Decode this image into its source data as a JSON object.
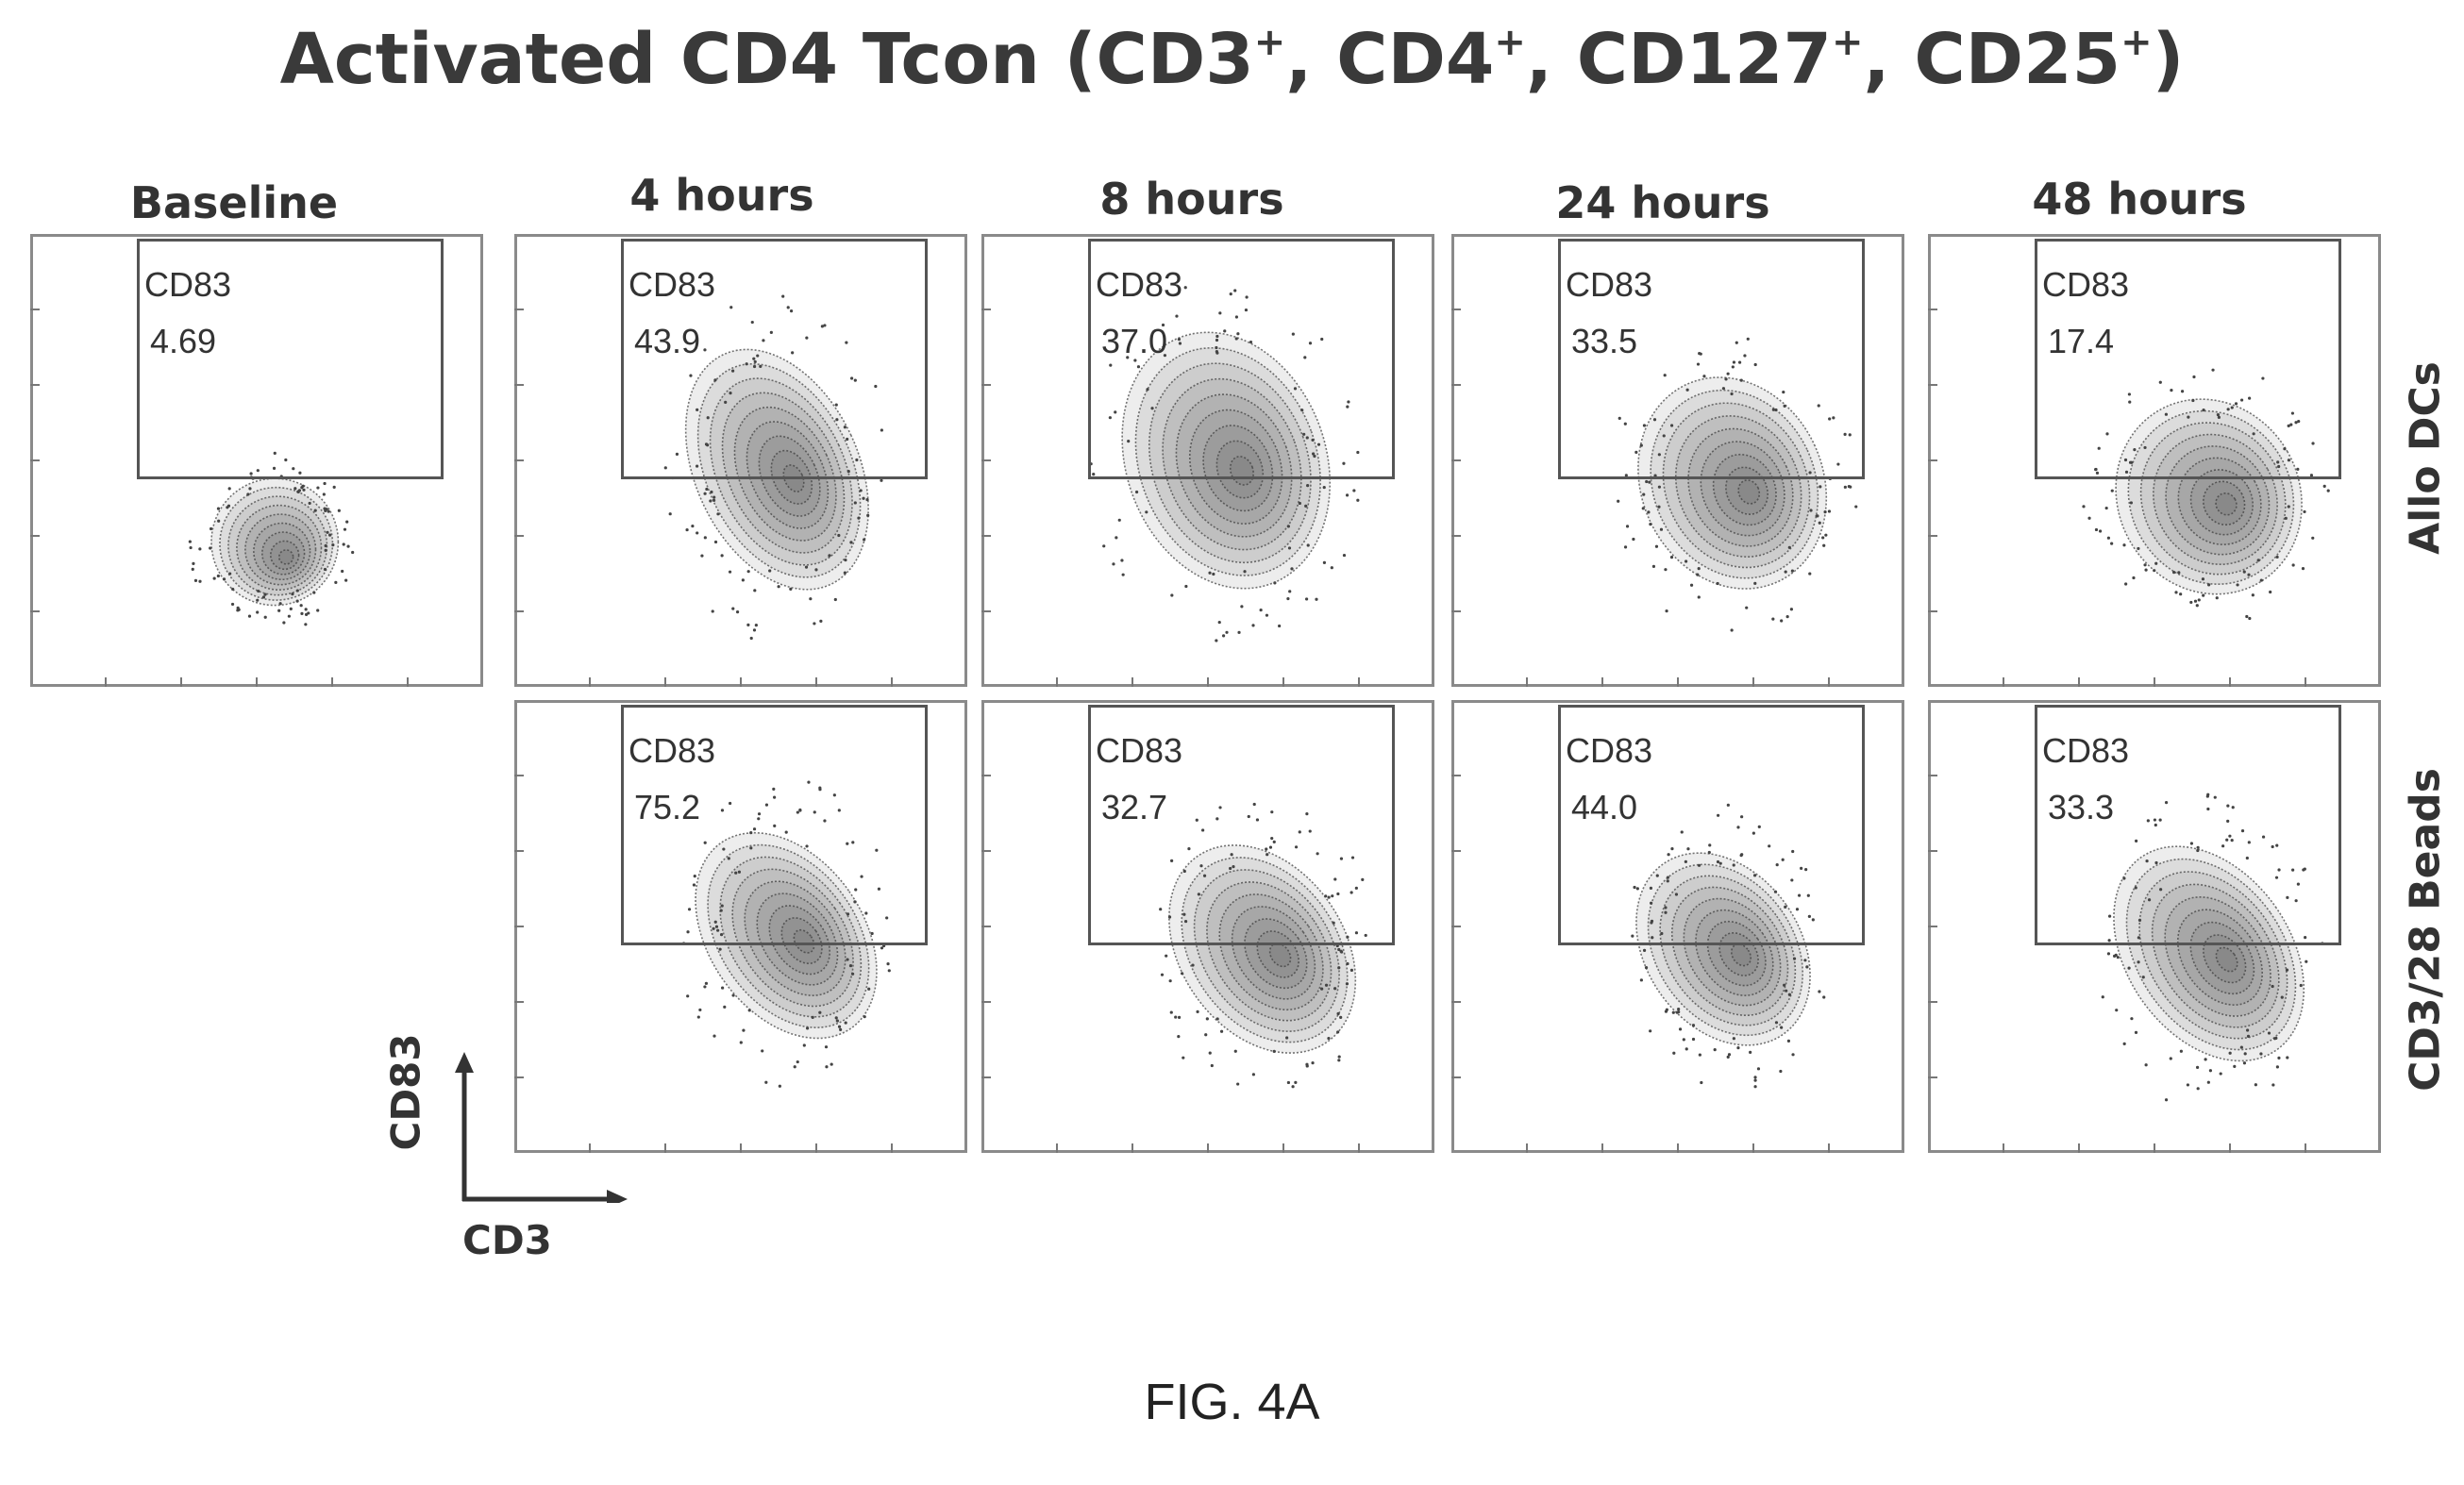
{
  "figure": {
    "title_main": "Activated CD4 Tcon (CD3",
    "title_parts": [
      "Activated CD4 Tcon (CD3",
      "+",
      ", CD4",
      "+",
      ", CD127",
      "+",
      ", CD25",
      "+",
      ")"
    ],
    "caption": "FIG. 4A",
    "x_axis_label": "CD3",
    "y_axis_label": "CD83"
  },
  "chart_data": {
    "type": "contour",
    "title": "Activated CD4 Tcon (CD3+, CD4+, CD127+, CD25+)",
    "xlabel": "CD3",
    "ylabel": "CD83",
    "gate_label": "CD83",
    "timepoints": [
      "Baseline",
      "4 hours",
      "8 hours",
      "24 hours",
      "48 hours"
    ],
    "conditions": [
      "Allo DCs",
      "CD3/28 Beads"
    ],
    "series": [
      {
        "name": "Allo DCs",
        "values": [
          "4.69",
          "43.9",
          "37.0",
          "33.5",
          "17.4"
        ]
      },
      {
        "name": "CD3/28 Beads",
        "values": [
          null,
          "75.2",
          "32.7",
          "44.0",
          "33.3"
        ]
      }
    ]
  },
  "colors": {
    "panel_border": "#8a8a8a",
    "gate_border": "#555555",
    "density": "#3a3a3a"
  }
}
